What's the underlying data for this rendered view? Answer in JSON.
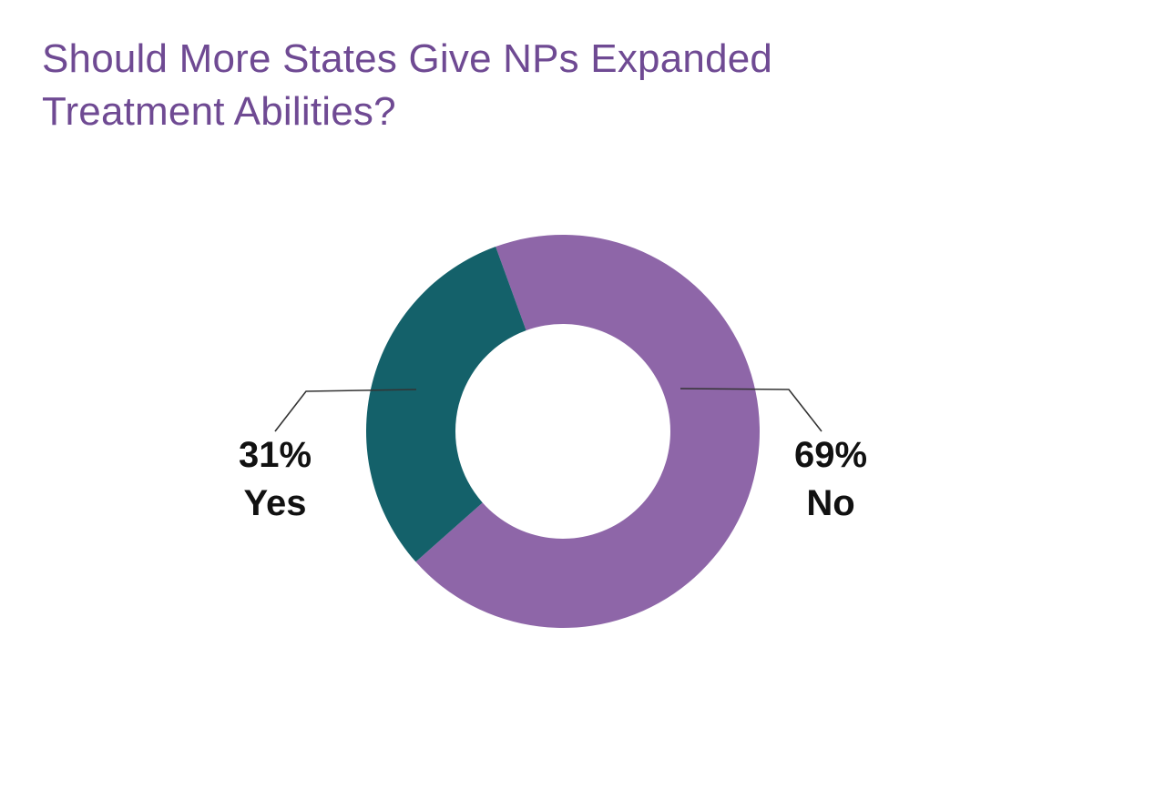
{
  "chart_data": {
    "type": "pie",
    "variant": "donut",
    "title_lines": [
      "Should More States Give NPs Expanded",
      "Treatment Abilities?"
    ],
    "slices": [
      {
        "label": "No",
        "value": 69,
        "display": "69%",
        "color": "#8e66a8"
      },
      {
        "label": "Yes",
        "value": 31,
        "display": "31%",
        "color": "#14616a"
      }
    ],
    "legend": "none"
  }
}
